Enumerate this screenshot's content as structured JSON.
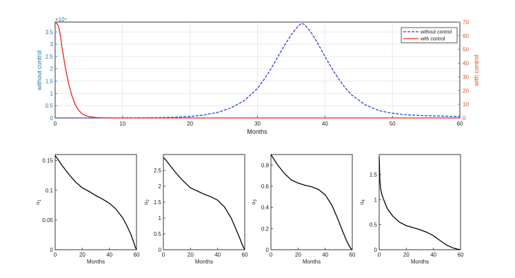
{
  "colors": {
    "without_control": "#2b3bd1",
    "with_control": "#e2231a",
    "left_axis": "#1f77b4",
    "right_axis": "#d95319",
    "grid": "#e3e3e3",
    "axis": "#333333",
    "curve": "#000000"
  },
  "chart_data": [
    {
      "type": "line",
      "xlabel": "Months",
      "ylabel_left": "without control",
      "ylabel_right": "with control",
      "exponent_label": "×10⁴",
      "xlim": [
        0,
        60
      ],
      "ylim_left": [
        0,
        39000
      ],
      "ylim_right": [
        0,
        70
      ],
      "x_ticks": [
        "0",
        "10",
        "20",
        "30",
        "40",
        "50",
        "60"
      ],
      "y_left_ticks": [
        "0",
        "0.5",
        "1",
        "1.5",
        "2",
        "2.5",
        "3",
        "3.5"
      ],
      "y_right_ticks": [
        "0",
        "10",
        "20",
        "30",
        "40",
        "50",
        "60",
        "70"
      ],
      "grid": true,
      "legend_position": "top-right",
      "series": [
        {
          "name": "without control",
          "axis": "left",
          "style": "dashed",
          "x": [
            0,
            5,
            10,
            15,
            18,
            20,
            22,
            24,
            26,
            28,
            30,
            31,
            32,
            33,
            34,
            35,
            36,
            36.5,
            37,
            38,
            39,
            40,
            41,
            42,
            43,
            44,
            46,
            48,
            50,
            52,
            55,
            58,
            60
          ],
          "y": [
            0,
            0,
            0,
            100,
            300,
            600,
            1200,
            2200,
            4000,
            7000,
            12000,
            15800,
            20000,
            24800,
            29500,
            33800,
            37300,
            38500,
            38000,
            34600,
            30000,
            25000,
            20300,
            16000,
            12300,
            9300,
            5300,
            3000,
            1900,
            1300,
            900,
            700,
            600
          ]
        },
        {
          "name": "with control",
          "axis": "right",
          "style": "solid",
          "x": [
            0,
            0.25,
            0.5,
            0.75,
            1,
            1.5,
            2,
            2.5,
            3,
            3.5,
            4,
            4.5,
            5,
            6,
            7,
            8,
            10,
            20,
            30,
            40,
            50,
            60
          ],
          "y": [
            70,
            69,
            67,
            61,
            52,
            37,
            25,
            16,
            9.5,
            5.5,
            3,
            1.8,
            1,
            0.3,
            0.1,
            0,
            0,
            0,
            0,
            0,
            0,
            0
          ]
        }
      ]
    },
    {
      "type": "line",
      "xlabel": "Months",
      "ylabel": "u1",
      "ylabel_base": "u",
      "ylabel_sub": "1",
      "xlim": [
        0,
        60
      ],
      "ylim": [
        0,
        0.16
      ],
      "x_ticks": [
        "0",
        "20",
        "40",
        "60"
      ],
      "y_ticks": [
        "0",
        "0.05",
        "0.1",
        "0.15"
      ],
      "series": [
        {
          "x": [
            0,
            2,
            5,
            10,
            15,
            20,
            25,
            30,
            35,
            40,
            45,
            50,
            53,
            56,
            58,
            59,
            60
          ],
          "y": [
            0.158,
            0.152,
            0.142,
            0.127,
            0.114,
            0.104,
            0.098,
            0.091,
            0.085,
            0.078,
            0.068,
            0.053,
            0.04,
            0.025,
            0.012,
            0.005,
            0
          ]
        }
      ]
    },
    {
      "type": "line",
      "xlabel": "Months",
      "ylabel": "u2",
      "ylabel_base": "u",
      "ylabel_sub": "2",
      "xlim": [
        0,
        60
      ],
      "ylim": [
        0,
        3
      ],
      "x_ticks": [
        "0",
        "20",
        "40",
        "60"
      ],
      "y_ticks": [
        "0",
        "0.5",
        "1",
        "1.5",
        "2",
        "2.5"
      ],
      "series": [
        {
          "x": [
            0,
            2,
            5,
            10,
            15,
            20,
            25,
            30,
            35,
            40,
            45,
            50,
            53,
            56,
            58,
            59,
            60
          ],
          "y": [
            2.9,
            2.82,
            2.65,
            2.38,
            2.15,
            1.95,
            1.85,
            1.75,
            1.67,
            1.56,
            1.35,
            1.0,
            0.7,
            0.4,
            0.18,
            0.08,
            0
          ]
        }
      ]
    },
    {
      "type": "line",
      "xlabel": "Months",
      "ylabel": "u3",
      "ylabel_base": "u",
      "ylabel_sub": "3",
      "xlim": [
        0,
        60
      ],
      "ylim": [
        0,
        0.9
      ],
      "x_ticks": [
        "0",
        "20",
        "40",
        "60"
      ],
      "y_ticks": [
        "0",
        "0.2",
        "0.4",
        "0.6",
        "0.8"
      ],
      "series": [
        {
          "x": [
            0,
            2,
            5,
            10,
            15,
            20,
            25,
            30,
            35,
            40,
            45,
            50,
            53,
            56,
            58,
            59,
            60
          ],
          "y": [
            0.9,
            0.86,
            0.8,
            0.72,
            0.66,
            0.63,
            0.61,
            0.595,
            0.57,
            0.52,
            0.42,
            0.27,
            0.17,
            0.08,
            0.03,
            0.01,
            0
          ]
        }
      ]
    },
    {
      "type": "line",
      "xlabel": "Months",
      "ylabel": "u4",
      "ylabel_base": "u",
      "ylabel_sub": "4",
      "xlim": [
        0,
        60
      ],
      "ylim": [
        0,
        1.9
      ],
      "x_ticks": [
        "0",
        "20",
        "40",
        "60"
      ],
      "y_ticks": [
        "0",
        "0.5",
        "1",
        "1.5"
      ],
      "series": [
        {
          "x": [
            0,
            0.5,
            1,
            2,
            4,
            6,
            10,
            15,
            20,
            25,
            30,
            35,
            40,
            45,
            50,
            55,
            58,
            60
          ],
          "y": [
            1.85,
            1.4,
            1.22,
            1.1,
            0.95,
            0.82,
            0.67,
            0.55,
            0.48,
            0.44,
            0.4,
            0.35,
            0.28,
            0.18,
            0.09,
            0.03,
            0.01,
            0
          ]
        }
      ]
    }
  ],
  "legend": {
    "without_control_label": "without control",
    "with_control_label": "with control"
  }
}
